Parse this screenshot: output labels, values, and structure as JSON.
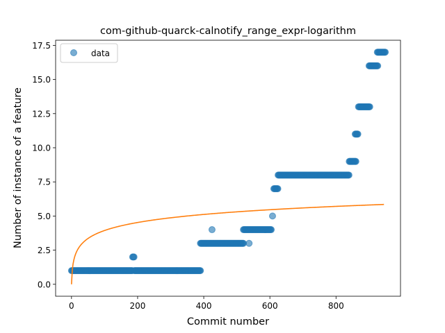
{
  "chart_data": {
    "type": "scatter",
    "title": "com-github-quarck-calnotify_range_expr-logarithm",
    "xlabel": "Commit number",
    "ylabel": "Number of instance of a feature",
    "xlim": [
      -48,
      995
    ],
    "ylim": [
      -0.875,
      17.875
    ],
    "xticks": [
      0,
      200,
      400,
      600,
      800
    ],
    "xtick_labels": [
      "0",
      "200",
      "400",
      "600",
      "800"
    ],
    "yticks": [
      0.0,
      2.5,
      5.0,
      7.5,
      10.0,
      12.5,
      15.0,
      17.5
    ],
    "ytick_labels": [
      "0.0",
      "2.5",
      "5.0",
      "7.5",
      "10.0",
      "12.5",
      "15.0",
      "17.5"
    ],
    "grid": false,
    "legend_position": "top-left",
    "series": [
      {
        "name": "data",
        "kind": "scatter",
        "color": "#1f77b4",
        "segments": [
          {
            "x_from": 0,
            "x_to": 185,
            "y": 1
          },
          {
            "x_from": 185,
            "x_to": 190,
            "y": 2
          },
          {
            "x_from": 190,
            "x_to": 390,
            "y": 1
          },
          {
            "x_from": 390,
            "x_to": 520,
            "y": 3
          },
          {
            "x": 425,
            "y": 4
          },
          {
            "x_from": 520,
            "x_to": 605,
            "y": 4
          },
          {
            "x": 537,
            "y": 3
          },
          {
            "x": 608,
            "y": 5
          },
          {
            "x_from": 612,
            "x_to": 625,
            "y": 7
          },
          {
            "x_from": 625,
            "x_to": 840,
            "y": 8
          },
          {
            "x_from": 840,
            "x_to": 860,
            "y": 9
          },
          {
            "x_from": 858,
            "x_to": 866,
            "y": 11
          },
          {
            "x_from": 868,
            "x_to": 902,
            "y": 13
          },
          {
            "x_from": 900,
            "x_to": 926,
            "y": 16
          },
          {
            "x_from": 925,
            "x_to": 950,
            "y": 17
          }
        ]
      },
      {
        "name": "",
        "kind": "line",
        "color": "#ff7f0e",
        "function": "log",
        "a": 0.8535,
        "x_range": [
          0,
          945
        ]
      }
    ]
  }
}
